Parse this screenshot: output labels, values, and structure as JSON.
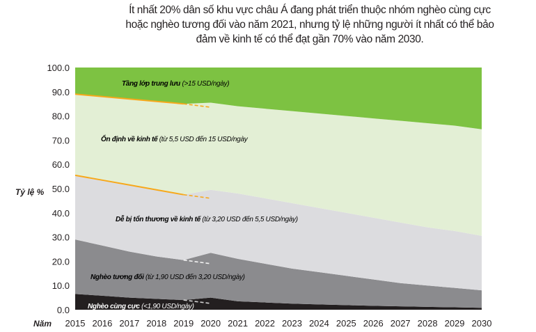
{
  "chart_data": {
    "type": "area",
    "stacked": true,
    "title": "Ít nhất 20% dân số khu vực châu Á đang phát triển thuộc nhóm nghèo cùng cực hoặc nghèo tương đối vào năm 2021, nhưng tỷ lệ những người ít nhất có thể bảo đảm về kinh tế có thể đạt gần 70% vào năm 2030.",
    "xlabel": "Năm",
    "ylabel": "Tỷ lệ %",
    "ylim": [
      0,
      100
    ],
    "yticks": [
      "0.0",
      "10.0",
      "20.0",
      "30.0",
      "40.0",
      "50.0",
      "60.0",
      "70.0",
      "80.0",
      "90.0",
      "100.0"
    ],
    "x": [
      "2015",
      "2016",
      "2017",
      "2018",
      "2019",
      "2020",
      "2021",
      "2022",
      "2023",
      "2024",
      "2025",
      "2026",
      "2027",
      "2028",
      "2029",
      "2030"
    ],
    "series": [
      {
        "name": "Nghèo cùng cực",
        "range": "(<1,90 USD/ngày)",
        "color": "#231f20",
        "text_color": "#ffffff",
        "values": [
          6.5,
          5.8,
          5,
          4.5,
          4,
          5,
          3.5,
          3,
          2.5,
          2.2,
          1.9,
          1.6,
          1.4,
          1.2,
          1,
          0.8
        ]
      },
      {
        "name": "Nghèo tương đối",
        "range": "(từ 1,90 USD đến 3,20 USD/ngày)",
        "color": "#8b8b8e",
        "text_color": "#231f20",
        "values": [
          22.5,
          20.7,
          19,
          17.5,
          16.5,
          18.5,
          17.5,
          16,
          14.5,
          13.3,
          12.1,
          10.9,
          9.6,
          8.8,
          8,
          7.2
        ]
      },
      {
        "name": "Dễ bị tổn thương về kinh tế",
        "range": "(từ 3,20 USD đến 5,5 USD/ngày)",
        "color": "#dcdcdf",
        "text_color": "#231f20",
        "values": [
          26.5,
          27,
          27.5,
          27.5,
          27,
          26,
          27,
          27,
          27,
          26.5,
          26,
          25.5,
          25,
          24,
          23.5,
          22.5
        ]
      },
      {
        "name": "Ổn định về kinh tế",
        "range": "(từ 5,5 USD đến 15 USD/ngày",
        "color": "#e3efd5",
        "text_color": "#231f20",
        "values": [
          33.5,
          34.5,
          35.5,
          36.5,
          37.5,
          36,
          36,
          37,
          38,
          39,
          40,
          41,
          42,
          43,
          43.5,
          44
        ]
      },
      {
        "name": "Tầng lớp trung lưu",
        "range": "(>15 USD/ngày)",
        "color": "#7dc242",
        "text_color": "#231f20",
        "values": [
          11,
          12,
          13,
          14,
          15,
          14.5,
          16,
          17,
          18,
          19,
          20,
          21,
          22,
          23,
          24,
          25.5
        ]
      }
    ],
    "pre_covid_projection": {
      "description_lines": [
        {
          "color": "#f7a81b",
          "x": [
            "2015",
            "2016",
            "2017",
            "2018",
            "2019"
          ],
          "y": [
            89,
            88,
            87,
            86,
            85
          ],
          "dashed_to_2020": 83.6
        },
        {
          "color": "#f7a81b",
          "x": [
            "2015",
            "2016",
            "2017",
            "2018",
            "2019"
          ],
          "y": [
            55.5,
            53.5,
            51.5,
            49.5,
            47.5
          ],
          "dashed_to_2020": 46
        },
        {
          "color": "#f2f2f2",
          "x": [
            "2019"
          ],
          "y": [
            20.5
          ],
          "dashed_to_2020": 19
        },
        {
          "color": "#d0d0d0",
          "x": [
            "2019"
          ],
          "y": [
            4
          ],
          "dashed_to_2020": 2.6
        }
      ]
    }
  }
}
